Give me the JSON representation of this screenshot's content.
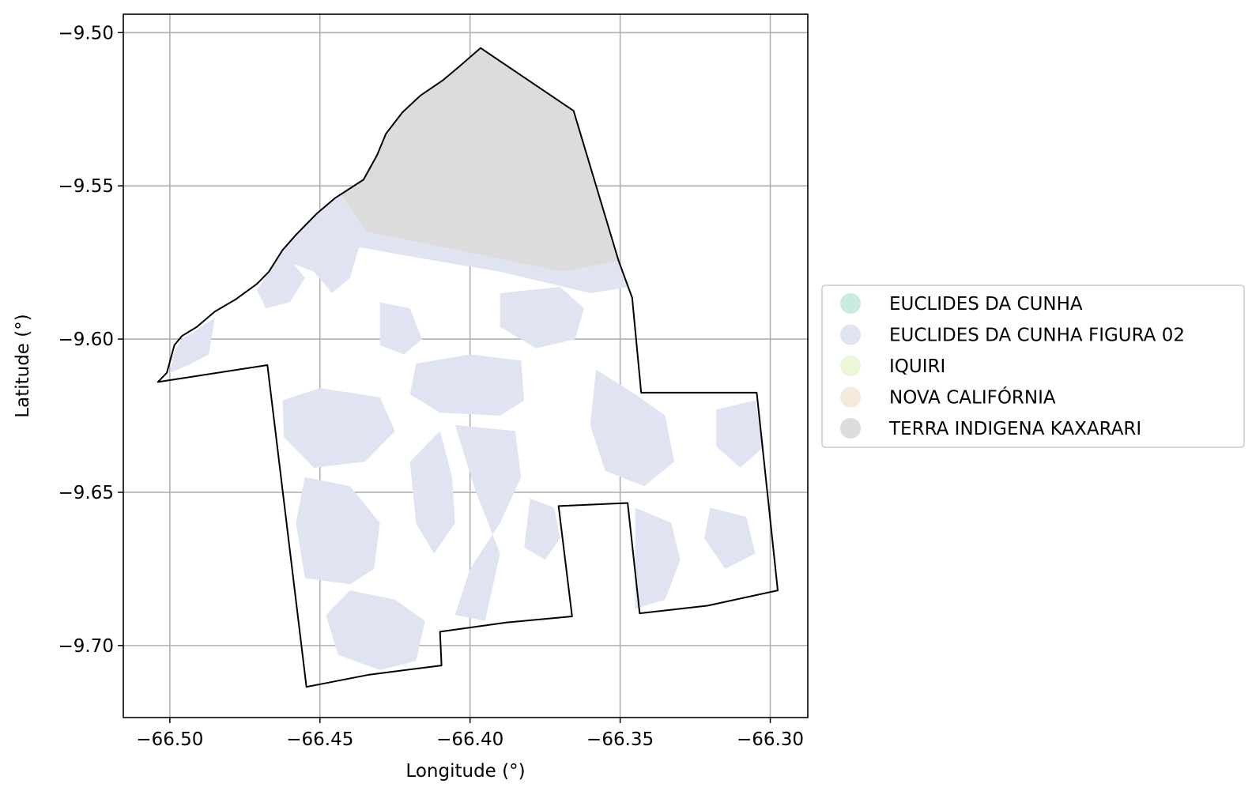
{
  "chart_data": {
    "type": "map",
    "xlabel": "Longitude (°)",
    "ylabel": "Latitude (°)",
    "xlim": [
      -66.5155,
      -66.2875
    ],
    "ylim": [
      -9.7235,
      -9.494
    ],
    "xticks": [
      {
        "value": -66.5,
        "label": "−66.50"
      },
      {
        "value": -66.45,
        "label": "−66.45"
      },
      {
        "value": -66.4,
        "label": "−66.40"
      },
      {
        "value": -66.35,
        "label": "−66.35"
      },
      {
        "value": -66.3,
        "label": "−66.30"
      }
    ],
    "yticks": [
      {
        "value": -9.5,
        "label": "−9.50"
      },
      {
        "value": -9.55,
        "label": "−9.55"
      },
      {
        "value": -9.6,
        "label": "−9.60"
      },
      {
        "value": -9.65,
        "label": "−9.65"
      },
      {
        "value": -9.7,
        "label": "−9.70"
      }
    ],
    "grid": true,
    "legend_position": "center-right",
    "legend": [
      {
        "label": "EUCLIDES DA CUNHA",
        "color": "#c8ebdd"
      },
      {
        "label": "EUCLIDES DA CUNHA FIGURA 02",
        "color": "#dfe3f2"
      },
      {
        "label": "IQUIRI",
        "color": "#eaf7d8"
      },
      {
        "label": "NOVA CALIFÓRNIA",
        "color": "#f5e9dc"
      },
      {
        "label": "TERRA INDIGENA KAXARARI",
        "color": "#dcdcdc"
      }
    ],
    "boundary": [
      [
        -66.504,
        -9.614
      ],
      [
        -66.501,
        -9.611
      ],
      [
        -66.4985,
        -9.602
      ],
      [
        -66.496,
        -9.599
      ],
      [
        -66.491,
        -9.596
      ],
      [
        -66.485,
        -9.591
      ],
      [
        -66.478,
        -9.587
      ],
      [
        -66.471,
        -9.582
      ],
      [
        -66.467,
        -9.578
      ],
      [
        -66.4625,
        -9.571
      ],
      [
        -66.458,
        -9.566
      ],
      [
        -66.451,
        -9.559
      ],
      [
        -66.445,
        -9.554
      ],
      [
        -66.4355,
        -9.548
      ],
      [
        -66.431,
        -9.54
      ],
      [
        -66.428,
        -9.533
      ],
      [
        -66.4225,
        -9.526
      ],
      [
        -66.4165,
        -9.5205
      ],
      [
        -66.409,
        -9.5155
      ],
      [
        -66.4035,
        -9.511
      ],
      [
        -66.3965,
        -9.505
      ],
      [
        -66.3655,
        -9.5255
      ],
      [
        -66.3505,
        -9.5745
      ],
      [
        -66.346,
        -9.5865
      ],
      [
        -66.343,
        -9.6175
      ],
      [
        -66.3045,
        -9.6175
      ],
      [
        -66.2975,
        -9.682
      ],
      [
        -66.321,
        -9.687
      ],
      [
        -66.3435,
        -9.6895
      ],
      [
        -66.3475,
        -9.6535
      ],
      [
        -66.3705,
        -9.6545
      ],
      [
        -66.366,
        -9.6905
      ],
      [
        -66.388,
        -9.6925
      ],
      [
        -66.41,
        -9.6955
      ],
      [
        -66.4095,
        -9.7065
      ],
      [
        -66.4335,
        -9.7095
      ],
      [
        -66.4545,
        -9.7135
      ],
      [
        -66.4675,
        -9.6085
      ],
      [
        -66.504,
        -9.614
      ]
    ],
    "features": [
      {
        "name": "TERRA INDIGENA KAXARARI",
        "color": "#dcdcdc",
        "polygon": [
          [
            -66.443,
            -9.553
          ],
          [
            -66.4355,
            -9.548
          ],
          [
            -66.431,
            -9.54
          ],
          [
            -66.428,
            -9.533
          ],
          [
            -66.4225,
            -9.526
          ],
          [
            -66.4165,
            -9.5205
          ],
          [
            -66.409,
            -9.5155
          ],
          [
            -66.4035,
            -9.511
          ],
          [
            -66.3965,
            -9.505
          ],
          [
            -66.3655,
            -9.5255
          ],
          [
            -66.3505,
            -9.5745
          ],
          [
            -66.369,
            -9.578
          ],
          [
            -66.4345,
            -9.565
          ]
        ]
      },
      {
        "name": "EUCLIDES DA CUNHA FIGURA 02",
        "color": "#dfe3f2",
        "polygons": [
          [
            [
              -66.443,
              -9.553
            ],
            [
              -66.4345,
              -9.565
            ],
            [
              -66.369,
              -9.578
            ],
            [
              -66.3505,
              -9.5745
            ],
            [
              -66.347,
              -9.583
            ],
            [
              -66.36,
              -9.585
            ],
            [
              -66.39,
              -9.578
            ],
            [
              -66.42,
              -9.573
            ],
            [
              -66.437,
              -9.57
            ]
          ],
          [
            [
              -66.451,
              -9.559
            ],
            [
              -66.443,
              -9.553
            ],
            [
              -66.437,
              -9.57
            ],
            [
              -66.44,
              -9.58
            ],
            [
              -66.446,
              -9.585
            ],
            [
              -66.452,
              -9.578
            ],
            [
              -66.46,
              -9.575
            ],
            [
              -66.4625,
              -9.571
            ],
            [
              -66.458,
              -9.566
            ]
          ],
          [
            [
              -66.467,
              -9.578
            ],
            [
              -66.4625,
              -9.571
            ],
            [
              -66.455,
              -9.58
            ],
            [
              -66.46,
              -9.588
            ],
            [
              -66.468,
              -9.59
            ],
            [
              -66.471,
              -9.584
            ]
          ],
          [
            [
              -66.4985,
              -9.604
            ],
            [
              -66.496,
              -9.6
            ],
            [
              -66.491,
              -9.597
            ],
            [
              -66.485,
              -9.593
            ],
            [
              -66.487,
              -9.605
            ],
            [
              -66.495,
              -9.609
            ],
            [
              -66.5,
              -9.611
            ]
          ],
          [
            [
              -66.4625,
              -9.62
            ],
            [
              -66.45,
              -9.616
            ],
            [
              -66.43,
              -9.619
            ],
            [
              -66.425,
              -9.63
            ],
            [
              -66.435,
              -9.64
            ],
            [
              -66.452,
              -9.642
            ],
            [
              -66.462,
              -9.632
            ]
          ],
          [
            [
              -66.455,
              -9.645
            ],
            [
              -66.44,
              -9.648
            ],
            [
              -66.43,
              -9.66
            ],
            [
              -66.432,
              -9.675
            ],
            [
              -66.44,
              -9.68
            ],
            [
              -66.455,
              -9.678
            ],
            [
              -66.458,
              -9.66
            ]
          ],
          [
            [
              -66.44,
              -9.682
            ],
            [
              -66.425,
              -9.685
            ],
            [
              -66.415,
              -9.692
            ],
            [
              -66.418,
              -9.705
            ],
            [
              -66.43,
              -9.708
            ],
            [
              -66.444,
              -9.703
            ],
            [
              -66.448,
              -9.69
            ]
          ],
          [
            [
              -66.418,
              -9.608
            ],
            [
              -66.4,
              -9.605
            ],
            [
              -66.383,
              -9.607
            ],
            [
              -66.382,
              -9.62
            ],
            [
              -66.39,
              -9.625
            ],
            [
              -66.41,
              -9.624
            ],
            [
              -66.42,
              -9.618
            ]
          ],
          [
            [
              -66.405,
              -9.628
            ],
            [
              -66.385,
              -9.63
            ],
            [
              -66.383,
              -9.645
            ],
            [
              -66.39,
              -9.66
            ],
            [
              -66.4,
              -9.675
            ],
            [
              -66.405,
              -9.69
            ],
            [
              -66.395,
              -9.692
            ],
            [
              -66.39,
              -9.67
            ],
            [
              -66.398,
              -9.65
            ]
          ],
          [
            [
              -66.41,
              -9.63
            ],
            [
              -66.42,
              -9.64
            ],
            [
              -66.418,
              -9.66
            ],
            [
              -66.412,
              -9.67
            ],
            [
              -66.405,
              -9.66
            ],
            [
              -66.406,
              -9.645
            ]
          ],
          [
            [
              -66.39,
              -9.585
            ],
            [
              -66.37,
              -9.583
            ],
            [
              -66.362,
              -9.59
            ],
            [
              -66.365,
              -9.6
            ],
            [
              -66.378,
              -9.603
            ],
            [
              -66.39,
              -9.596
            ]
          ],
          [
            [
              -66.358,
              -9.61
            ],
            [
              -66.345,
              -9.618
            ],
            [
              -66.335,
              -9.625
            ],
            [
              -66.332,
              -9.64
            ],
            [
              -66.342,
              -9.648
            ],
            [
              -66.355,
              -9.643
            ],
            [
              -66.36,
              -9.628
            ]
          ],
          [
            [
              -66.345,
              -9.655
            ],
            [
              -66.333,
              -9.66
            ],
            [
              -66.33,
              -9.672
            ],
            [
              -66.335,
              -9.685
            ],
            [
              -66.345,
              -9.688
            ]
          ],
          [
            [
              -66.318,
              -9.623
            ],
            [
              -66.305,
              -9.62
            ],
            [
              -66.302,
              -9.635
            ],
            [
              -66.31,
              -9.642
            ],
            [
              -66.318,
              -9.635
            ]
          ],
          [
            [
              -66.32,
              -9.655
            ],
            [
              -66.308,
              -9.658
            ],
            [
              -66.305,
              -9.67
            ],
            [
              -66.315,
              -9.675
            ],
            [
              -66.322,
              -9.665
            ]
          ],
          [
            [
              -66.38,
              -9.652
            ],
            [
              -66.372,
              -9.655
            ],
            [
              -66.37,
              -9.665
            ],
            [
              -66.375,
              -9.672
            ],
            [
              -66.382,
              -9.668
            ]
          ],
          [
            [
              -66.43,
              -9.588
            ],
            [
              -66.42,
              -9.59
            ],
            [
              -66.416,
              -9.6
            ],
            [
              -66.422,
              -9.605
            ],
            [
              -66.43,
              -9.602
            ]
          ]
        ]
      }
    ]
  }
}
